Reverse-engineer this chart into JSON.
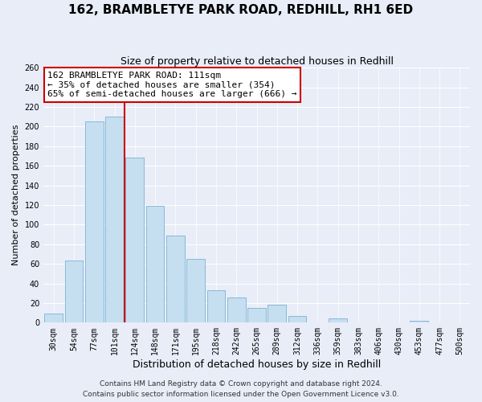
{
  "title": "162, BRAMBLETYE PARK ROAD, REDHILL, RH1 6ED",
  "subtitle": "Size of property relative to detached houses in Redhill",
  "xlabel": "Distribution of detached houses by size in Redhill",
  "ylabel": "Number of detached properties",
  "bar_labels": [
    "30sqm",
    "54sqm",
    "77sqm",
    "101sqm",
    "124sqm",
    "148sqm",
    "171sqm",
    "195sqm",
    "218sqm",
    "242sqm",
    "265sqm",
    "289sqm",
    "312sqm",
    "336sqm",
    "359sqm",
    "383sqm",
    "406sqm",
    "430sqm",
    "453sqm",
    "477sqm",
    "500sqm"
  ],
  "bar_values": [
    9,
    63,
    205,
    210,
    168,
    119,
    89,
    65,
    33,
    26,
    15,
    18,
    7,
    0,
    4,
    0,
    0,
    0,
    2,
    0,
    0
  ],
  "bar_color": "#c5dff0",
  "bar_edge_color": "#8ab8d8",
  "vline_color": "#cc0000",
  "annotation_line1": "162 BRAMBLETYE PARK ROAD: 111sqm",
  "annotation_line2": "← 35% of detached houses are smaller (354)",
  "annotation_line3": "65% of semi-detached houses are larger (666) →",
  "annotation_box_color": "#ffffff",
  "annotation_box_edgecolor": "#cc0000",
  "ylim": [
    0,
    260
  ],
  "yticks": [
    0,
    20,
    40,
    60,
    80,
    100,
    120,
    140,
    160,
    180,
    200,
    220,
    240,
    260
  ],
  "footer1": "Contains HM Land Registry data © Crown copyright and database right 2024.",
  "footer2": "Contains public sector information licensed under the Open Government Licence v3.0.",
  "background_color": "#e8edf8",
  "grid_color": "#ffffff",
  "title_fontsize": 11,
  "subtitle_fontsize": 9,
  "xlabel_fontsize": 9,
  "ylabel_fontsize": 8,
  "tick_fontsize": 7,
  "footer_fontsize": 6.5,
  "annotation_fontsize": 8
}
